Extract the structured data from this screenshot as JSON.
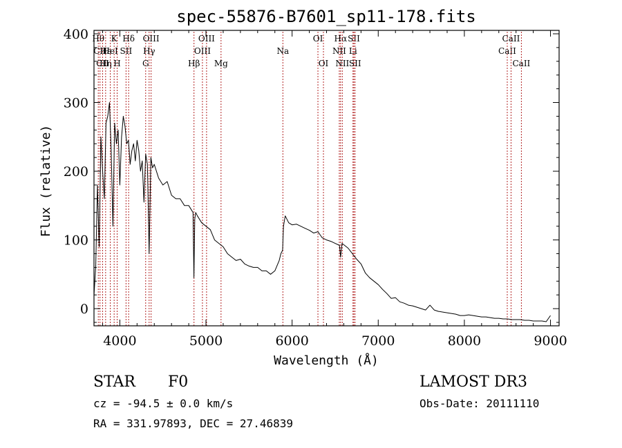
{
  "chart_data": {
    "type": "line",
    "title": "spec-55876-B7601_sp11-178.fits",
    "xlabel": "Wavelength (Å)",
    "ylabel": "Flux (relative)",
    "xlim": [
      3700,
      9100
    ],
    "ylim": [
      -25,
      405
    ],
    "xticks": [
      4000,
      5000,
      6000,
      7000,
      8000,
      9000
    ],
    "yticks": [
      0,
      100,
      200,
      300,
      400
    ],
    "series": [
      {
        "name": "flux",
        "color": "#000000",
        "x": [
          3700,
          3720,
          3740,
          3760,
          3780,
          3800,
          3820,
          3840,
          3860,
          3880,
          3900,
          3920,
          3940,
          3960,
          3980,
          4000,
          4020,
          4040,
          4060,
          4080,
          4100,
          4120,
          4140,
          4160,
          4180,
          4200,
          4220,
          4240,
          4260,
          4280,
          4300,
          4320,
          4340,
          4360,
          4380,
          4400,
          4450,
          4500,
          4550,
          4600,
          4650,
          4700,
          4750,
          4800,
          4850,
          4860,
          4870,
          4880,
          4900,
          4950,
          5000,
          5050,
          5100,
          5150,
          5200,
          5250,
          5300,
          5350,
          5400,
          5450,
          5500,
          5550,
          5600,
          5650,
          5700,
          5750,
          5800,
          5850,
          5870,
          5890,
          5900,
          5920,
          5940,
          5960,
          6000,
          6050,
          6100,
          6150,
          6200,
          6250,
          6300,
          6350,
          6400,
          6450,
          6500,
          6550,
          6563,
          6580,
          6600,
          6650,
          6700,
          6750,
          6800,
          6850,
          6900,
          6950,
          7000,
          7050,
          7100,
          7150,
          7200,
          7250,
          7300,
          7350,
          7400,
          7450,
          7500,
          7550,
          7600,
          7650,
          7700,
          7750,
          7800,
          7850,
          7900,
          7950,
          8000,
          8050,
          8100,
          8150,
          8200,
          8250,
          8300,
          8350,
          8400,
          8450,
          8500,
          8550,
          8600,
          8650,
          8700,
          8750,
          8800,
          8850,
          8900,
          8950,
          9000
        ],
        "values": [
          20,
          60,
          180,
          90,
          250,
          200,
          160,
          270,
          280,
          300,
          230,
          120,
          270,
          240,
          260,
          180,
          250,
          280,
          265,
          240,
          245,
          210,
          230,
          240,
          215,
          245,
          230,
          200,
          215,
          155,
          225,
          210,
          80,
          220,
          205,
          210,
          190,
          180,
          185,
          165,
          160,
          160,
          150,
          150,
          140,
          45,
          130,
          140,
          135,
          125,
          120,
          115,
          100,
          95,
          90,
          80,
          75,
          70,
          72,
          65,
          62,
          60,
          60,
          55,
          55,
          50,
          55,
          70,
          80,
          85,
          120,
          135,
          130,
          125,
          122,
          123,
          120,
          117,
          114,
          110,
          112,
          103,
          100,
          98,
          95,
          92,
          75,
          95,
          93,
          88,
          80,
          72,
          65,
          52,
          45,
          40,
          35,
          28,
          22,
          15,
          16,
          10,
          8,
          5,
          4,
          2,
          0,
          -2,
          5,
          -2,
          -4,
          -5,
          -6,
          -7,
          -8,
          -10,
          -10,
          -9,
          -10,
          -11,
          -12,
          -12,
          -13,
          -14,
          -14,
          -15,
          -15,
          -16,
          -16,
          -16,
          -17,
          -17,
          -18,
          -18,
          -18,
          -19,
          -10
        ]
      }
    ],
    "line_marks": [
      {
        "x": 3750,
        "labels": [
          {
            "text": "Hθ",
            "row": 0
          }
        ]
      },
      {
        "x": 3770,
        "labels": [
          {
            "text": "CII",
            "row": 1
          }
        ]
      },
      {
        "x": 3800,
        "labels": [
          {
            "text": "CII",
            "row": 2
          }
        ]
      },
      {
        "x": 3835,
        "labels": [
          {
            "text": "Hε",
            "row": 1
          },
          {
            "text": "Hη",
            "row": 2
          }
        ]
      },
      {
        "x": 3889,
        "labels": [
          {
            "text": "HeI",
            "row": 1
          }
        ]
      },
      {
        "x": 3934,
        "labels": [
          {
            "text": "K",
            "row": 0
          }
        ]
      },
      {
        "x": 3969,
        "labels": [
          {
            "text": "H",
            "row": 2
          }
        ]
      },
      {
        "x": 4072,
        "labels": [
          {
            "text": "SII",
            "row": 1
          }
        ]
      },
      {
        "x": 4102,
        "labels": [
          {
            "text": "Hδ",
            "row": 0
          }
        ]
      },
      {
        "x": 4300,
        "labels": [
          {
            "text": "G",
            "row": 2
          }
        ]
      },
      {
        "x": 4340,
        "labels": [
          {
            "text": "Hγ",
            "row": 1
          }
        ]
      },
      {
        "x": 4363,
        "labels": [
          {
            "text": "OIII",
            "row": 0
          }
        ]
      },
      {
        "x": 4861,
        "labels": [
          {
            "text": "Hβ",
            "row": 2
          }
        ]
      },
      {
        "x": 4959,
        "labels": [
          {
            "text": "OIII",
            "row": 1
          }
        ]
      },
      {
        "x": 5007,
        "labels": [
          {
            "text": "OIII",
            "row": 0
          }
        ]
      },
      {
        "x": 5175,
        "labels": [
          {
            "text": "Mg",
            "row": 2
          }
        ]
      },
      {
        "x": 5893,
        "labels": [
          {
            "text": "Na",
            "row": 1
          }
        ]
      },
      {
        "x": 6300,
        "labels": [
          {
            "text": "OI",
            "row": 0
          }
        ]
      },
      {
        "x": 6364,
        "labels": [
          {
            "text": "OI",
            "row": 2
          }
        ]
      },
      {
        "x": 6548,
        "labels": [
          {
            "text": "NII",
            "row": 1
          }
        ]
      },
      {
        "x": 6563,
        "labels": [
          {
            "text": "Hα",
            "row": 0
          }
        ]
      },
      {
        "x": 6583,
        "labels": [
          {
            "text": "NII",
            "row": 2
          }
        ]
      },
      {
        "x": 6707,
        "labels": [
          {
            "text": "Li",
            "row": 1
          }
        ]
      },
      {
        "x": 6717,
        "labels": [
          {
            "text": "SII",
            "row": 0
          }
        ]
      },
      {
        "x": 6731,
        "labels": [
          {
            "text": "SII",
            "row": 2
          }
        ]
      },
      {
        "x": 8498,
        "labels": [
          {
            "text": "CaII",
            "row": 1
          }
        ]
      },
      {
        "x": 8542,
        "labels": [
          {
            "text": "CaII",
            "row": 0
          }
        ]
      },
      {
        "x": 8662,
        "labels": [
          {
            "text": "CaII",
            "row": 2
          }
        ]
      }
    ]
  },
  "footer": {
    "object_class": "STAR",
    "subclass": "F0",
    "survey": "LAMOST DR3",
    "redshift": "cz = -94.5 ± 0.0 km/s",
    "obs_date": "Obs-Date: 20111110",
    "coords": "RA = 331.97893, DEC =  27.46839"
  },
  "colors": {
    "line_marker": "#b22222",
    "axis": "#000000"
  }
}
